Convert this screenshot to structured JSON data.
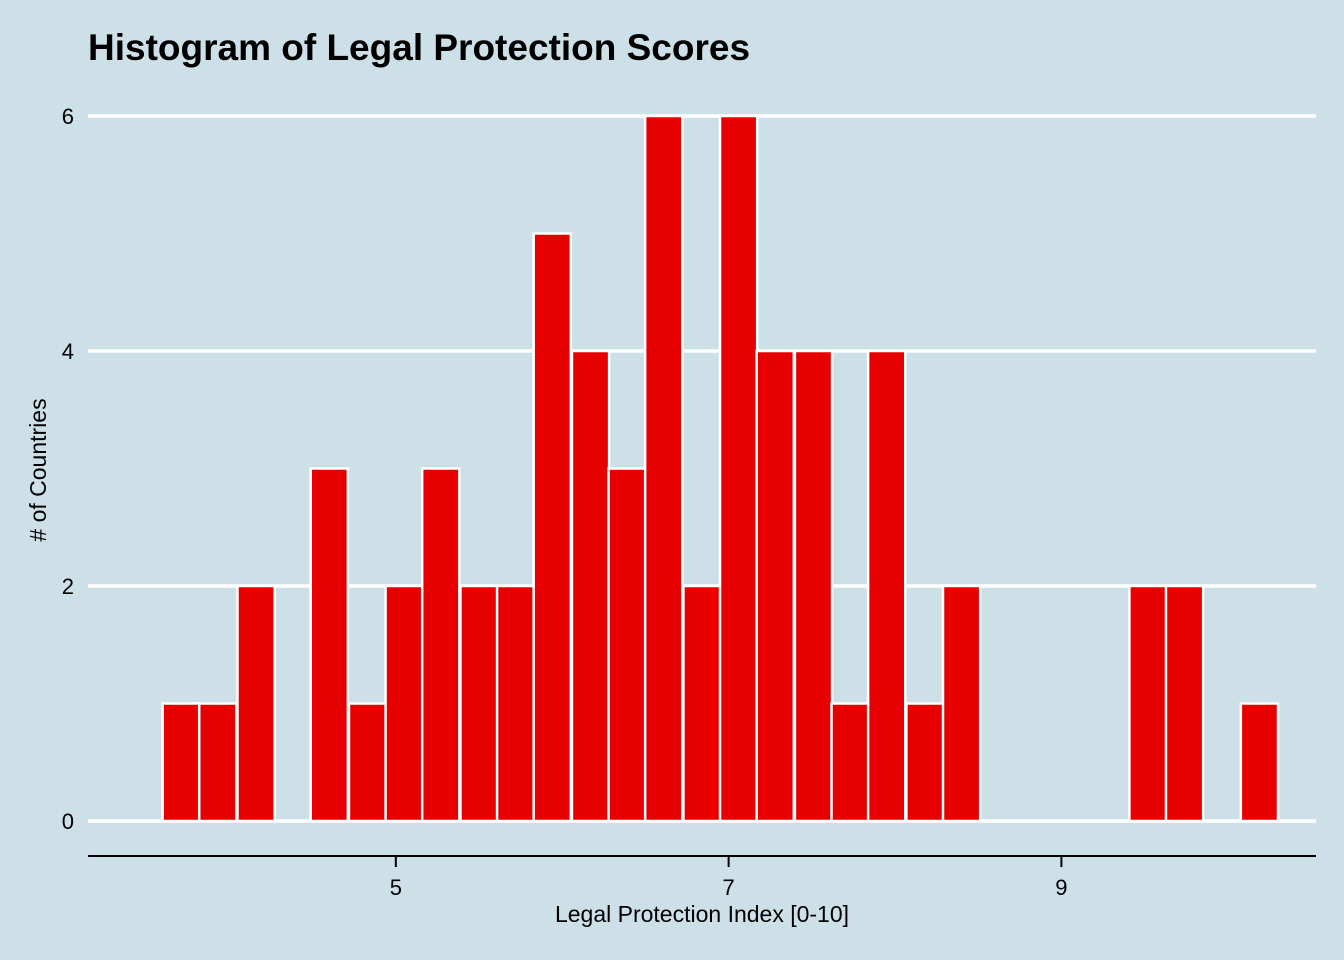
{
  "chart_data": {
    "type": "bar",
    "title": "Histogram of Legal Protection Scores",
    "xlabel": "Legal Protection Index [0-10]",
    "ylabel": "# of Countries",
    "bin_width": 0.2233,
    "bins": [
      {
        "center": 3.71,
        "count": 1
      },
      {
        "center": 3.93,
        "count": 1
      },
      {
        "center": 4.16,
        "count": 2
      },
      {
        "center": 4.38,
        "count": 0
      },
      {
        "center": 4.6,
        "count": 3
      },
      {
        "center": 4.83,
        "count": 1
      },
      {
        "center": 5.05,
        "count": 2
      },
      {
        "center": 5.27,
        "count": 3
      },
      {
        "center": 5.5,
        "count": 2
      },
      {
        "center": 5.72,
        "count": 2
      },
      {
        "center": 5.94,
        "count": 5
      },
      {
        "center": 6.17,
        "count": 4
      },
      {
        "center": 6.39,
        "count": 3
      },
      {
        "center": 6.61,
        "count": 6
      },
      {
        "center": 6.84,
        "count": 2
      },
      {
        "center": 7.06,
        "count": 6
      },
      {
        "center": 7.28,
        "count": 4
      },
      {
        "center": 7.51,
        "count": 4
      },
      {
        "center": 7.73,
        "count": 1
      },
      {
        "center": 7.95,
        "count": 4
      },
      {
        "center": 8.18,
        "count": 1
      },
      {
        "center": 8.4,
        "count": 2
      },
      {
        "center": 8.62,
        "count": 0
      },
      {
        "center": 8.85,
        "count": 0
      },
      {
        "center": 9.07,
        "count": 0
      },
      {
        "center": 9.29,
        "count": 0
      },
      {
        "center": 9.52,
        "count": 2
      },
      {
        "center": 9.74,
        "count": 2
      },
      {
        "center": 9.96,
        "count": 0
      },
      {
        "center": 10.19,
        "count": 1
      }
    ],
    "x_ticks": [
      5,
      7,
      9
    ],
    "y_ticks": [
      0,
      2,
      4,
      6
    ],
    "xlim": [
      3.15,
      10.53
    ],
    "ylim": [
      0,
      6
    ],
    "grid": "horizontal",
    "colors": {
      "bar_fill": "#e60000",
      "bar_stroke": "#ffffff",
      "background": "#cde0e7",
      "gridline": "#ffffff",
      "axis": "#000000"
    }
  }
}
